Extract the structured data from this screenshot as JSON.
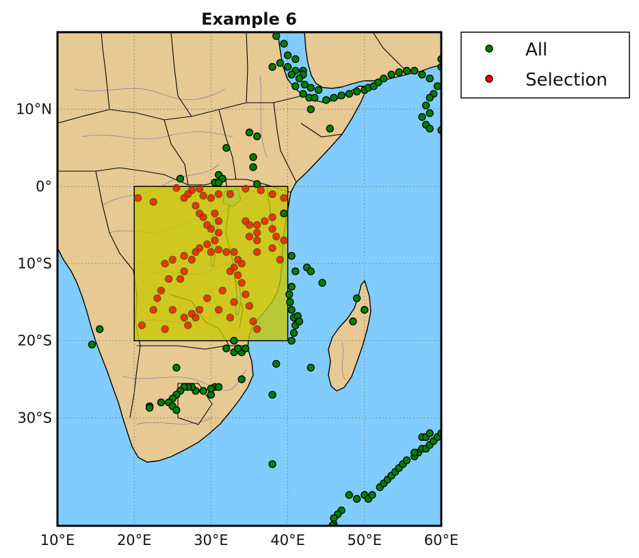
{
  "title": "Example 6",
  "map": {
    "lon_range": [
      10,
      60
    ],
    "lat_range": [
      -44,
      20
    ],
    "ocean_color": "#80ccff",
    "land_color": "#e6c993",
    "grid": true,
    "x_ticks": [
      {
        "value": 10,
        "label": "10°E"
      },
      {
        "value": 20,
        "label": "20°E"
      },
      {
        "value": 30,
        "label": "30°E"
      },
      {
        "value": 40,
        "label": "40°E"
      },
      {
        "value": 50,
        "label": "50°E"
      },
      {
        "value": 60,
        "label": "60°E"
      }
    ],
    "y_ticks": [
      {
        "value": 10,
        "label": "10°N"
      },
      {
        "value": 0,
        "label": "0°"
      },
      {
        "value": -10,
        "label": "10°S"
      },
      {
        "value": -20,
        "label": "20°S"
      },
      {
        "value": -30,
        "label": "30°S"
      }
    ],
    "selection_box": {
      "lon_min": 20,
      "lon_max": 40,
      "lat_min": -20,
      "lat_max": 0,
      "fill": "#c8c800"
    }
  },
  "legend": {
    "placement": "outside-top-right",
    "entries": [
      {
        "label": "All",
        "color": "#008000"
      },
      {
        "label": "Selection",
        "color": "#ff0000"
      }
    ]
  },
  "points_all": [
    [
      38.5,
      19.5
    ],
    [
      39.5,
      18.5
    ],
    [
      40,
      17
    ],
    [
      41,
      16.5
    ],
    [
      39,
      16
    ],
    [
      38,
      15.5
    ],
    [
      40,
      15.5
    ],
    [
      41,
      15
    ],
    [
      42,
      15
    ],
    [
      40.5,
      14.5
    ],
    [
      42,
      14.5
    ],
    [
      41.5,
      14
    ],
    [
      42.2,
      13.2
    ],
    [
      41,
      13
    ],
    [
      43,
      12.8
    ],
    [
      44,
      12.5
    ],
    [
      42.8,
      11.5
    ],
    [
      43.5,
      11.5
    ],
    [
      45,
      11.2
    ],
    [
      46,
      11.5
    ],
    [
      47,
      11.8
    ],
    [
      48,
      12
    ],
    [
      49,
      12.3
    ],
    [
      50,
      12.5
    ],
    [
      50.5,
      12.8
    ],
    [
      51.2,
      13
    ],
    [
      51.8,
      13.5
    ],
    [
      52.5,
      14
    ],
    [
      53.5,
      14.5
    ],
    [
      54.5,
      14.8
    ],
    [
      55.5,
      15
    ],
    [
      56.5,
      15
    ],
    [
      57.5,
      14.5
    ],
    [
      58.5,
      14
    ],
    [
      59.5,
      13
    ],
    [
      59,
      12
    ],
    [
      58.5,
      11.5
    ],
    [
      58,
      10.5
    ],
    [
      58.5,
      9.5
    ],
    [
      57.5,
      9
    ],
    [
      58,
      8
    ],
    [
      58.5,
      7.5
    ],
    [
      60,
      7.3
    ],
    [
      60,
      15.5
    ],
    [
      60,
      16.5
    ],
    [
      42,
      12
    ],
    [
      43,
      10
    ],
    [
      45.5,
      7.5
    ],
    [
      35,
      7
    ],
    [
      36,
      6.5
    ],
    [
      32,
      5
    ],
    [
      35.5,
      3.8
    ],
    [
      35.5,
      2.5
    ],
    [
      31,
      1.5
    ],
    [
      31.5,
      1
    ],
    [
      30.5,
      0.5
    ],
    [
      26,
      1
    ],
    [
      36,
      0.3
    ],
    [
      31,
      0.5
    ],
    [
      39.5,
      -3.5
    ],
    [
      40.5,
      -9
    ],
    [
      41,
      -11
    ],
    [
      42.5,
      -10.5
    ],
    [
      43,
      -11
    ],
    [
      44.5,
      -12.5
    ],
    [
      40.5,
      -13
    ],
    [
      40.2,
      -14
    ],
    [
      40.3,
      -15
    ],
    [
      40.5,
      -16
    ],
    [
      40.8,
      -17
    ],
    [
      41,
      -18
    ],
    [
      40.8,
      -19
    ],
    [
      40.5,
      -20
    ],
    [
      41.3,
      -16.8
    ],
    [
      41.5,
      -17.5
    ],
    [
      49,
      -14.5
    ],
    [
      48.5,
      -17.5
    ],
    [
      50,
      -16
    ],
    [
      43,
      -23.5
    ],
    [
      33,
      -20
    ],
    [
      32,
      -21
    ],
    [
      33,
      -21.5
    ],
    [
      34,
      -21.5
    ],
    [
      34.5,
      -21
    ],
    [
      33.5,
      -21
    ],
    [
      34,
      -25
    ],
    [
      38.5,
      -23
    ],
    [
      38,
      -27
    ],
    [
      38,
      -36
    ],
    [
      30,
      -27
    ],
    [
      30.5,
      -26
    ],
    [
      31,
      -26
    ],
    [
      30,
      -26.2
    ],
    [
      29,
      -26.5
    ],
    [
      28,
      -26.5
    ],
    [
      27.5,
      -26
    ],
    [
      27,
      -26
    ],
    [
      26.5,
      -26
    ],
    [
      26,
      -26.5
    ],
    [
      25.5,
      -27
    ],
    [
      25,
      -27.5
    ],
    [
      24.5,
      -28
    ],
    [
      25,
      -28.5
    ],
    [
      25.5,
      -29
    ],
    [
      22,
      -28.5
    ],
    [
      22,
      -28.7
    ],
    [
      23.5,
      -28
    ],
    [
      25.5,
      -23.5
    ],
    [
      14.5,
      -20.5
    ],
    [
      15.5,
      -18.5
    ],
    [
      48,
      -40
    ],
    [
      49,
      -40.5
    ],
    [
      50,
      -40
    ],
    [
      50.5,
      -40.5
    ],
    [
      51,
      -40
    ],
    [
      52,
      -39
    ],
    [
      52.5,
      -38.5
    ],
    [
      53,
      -38
    ],
    [
      53.5,
      -37.5
    ],
    [
      54,
      -37
    ],
    [
      54.5,
      -36.5
    ],
    [
      55,
      -36
    ],
    [
      55.5,
      -35.5
    ],
    [
      56.5,
      -35
    ],
    [
      57,
      -34.5
    ],
    [
      57.5,
      -34
    ],
    [
      58,
      -34
    ],
    [
      58.5,
      -33.5
    ],
    [
      59,
      -33
    ],
    [
      59.5,
      -32.5
    ],
    [
      60,
      -32
    ],
    [
      56.5,
      -34.5
    ],
    [
      57.5,
      -32.5
    ],
    [
      58,
      -32.5
    ],
    [
      58.5,
      -32
    ],
    [
      47,
      -42
    ],
    [
      46.5,
      -42.5
    ],
    [
      46,
      -43
    ],
    [
      46,
      -43.8
    ],
    [
      45.8,
      -44
    ]
  ],
  "points_selection": [
    [
      20.5,
      -1.5
    ],
    [
      22.5,
      -2
    ],
    [
      25.5,
      -0.2
    ],
    [
      26.5,
      -1.5
    ],
    [
      27,
      -1
    ],
    [
      27.5,
      -0.5
    ],
    [
      28.5,
      -0.3
    ],
    [
      29,
      -1.2
    ],
    [
      30,
      -1.5
    ],
    [
      31,
      -1
    ],
    [
      32.5,
      -1
    ],
    [
      34.5,
      -0.3
    ],
    [
      36.5,
      -0.5
    ],
    [
      38,
      -1
    ],
    [
      39.5,
      -1.5
    ],
    [
      28,
      -2.5
    ],
    [
      28.5,
      -3.5
    ],
    [
      29,
      -4
    ],
    [
      29.5,
      -5
    ],
    [
      30,
      -5.5
    ],
    [
      30.5,
      -3.5
    ],
    [
      31,
      -4.5
    ],
    [
      31,
      -6
    ],
    [
      30.5,
      -7
    ],
    [
      29.5,
      -7.5
    ],
    [
      28,
      -8.5
    ],
    [
      28.5,
      -8
    ],
    [
      30,
      -8.5
    ],
    [
      31,
      -8.2
    ],
    [
      32,
      -8.5
    ],
    [
      33,
      -8.5
    ],
    [
      33.5,
      -9.5
    ],
    [
      34,
      -10
    ],
    [
      33,
      -10.5
    ],
    [
      32.5,
      -11
    ],
    [
      33.5,
      -11.5
    ],
    [
      34,
      -12.5
    ],
    [
      34.5,
      -14
    ],
    [
      35,
      -15.5
    ],
    [
      35.5,
      -17.5
    ],
    [
      36,
      -18.5
    ],
    [
      34.5,
      -4.5
    ],
    [
      35,
      -5
    ],
    [
      36,
      -5
    ],
    [
      36,
      -6
    ],
    [
      35,
      -6.5
    ],
    [
      36,
      -7
    ],
    [
      36,
      -8.5
    ],
    [
      37,
      -4.5
    ],
    [
      38,
      -4
    ],
    [
      38,
      -5.5
    ],
    [
      38.5,
      -6.5
    ],
    [
      38,
      -8
    ],
    [
      39,
      -9.5
    ],
    [
      39.5,
      -7
    ],
    [
      24,
      -10
    ],
    [
      25,
      -9.5
    ],
    [
      26.5,
      -9
    ],
    [
      27.5,
      -9.5
    ],
    [
      26,
      -12
    ],
    [
      26.5,
      -11
    ],
    [
      24.5,
      -12
    ],
    [
      23.5,
      -13.5
    ],
    [
      23,
      -14.5
    ],
    [
      25,
      -16
    ],
    [
      26.5,
      -17
    ],
    [
      27.5,
      -16.5
    ],
    [
      28.5,
      -16
    ],
    [
      29.5,
      -14.5
    ],
    [
      31.5,
      -13.5
    ],
    [
      31,
      -16
    ],
    [
      32.5,
      -17
    ],
    [
      33,
      -15
    ],
    [
      22.5,
      -16
    ],
    [
      21,
      -18
    ],
    [
      24,
      -18.5
    ],
    [
      27,
      -18
    ],
    [
      28,
      -17
    ]
  ]
}
